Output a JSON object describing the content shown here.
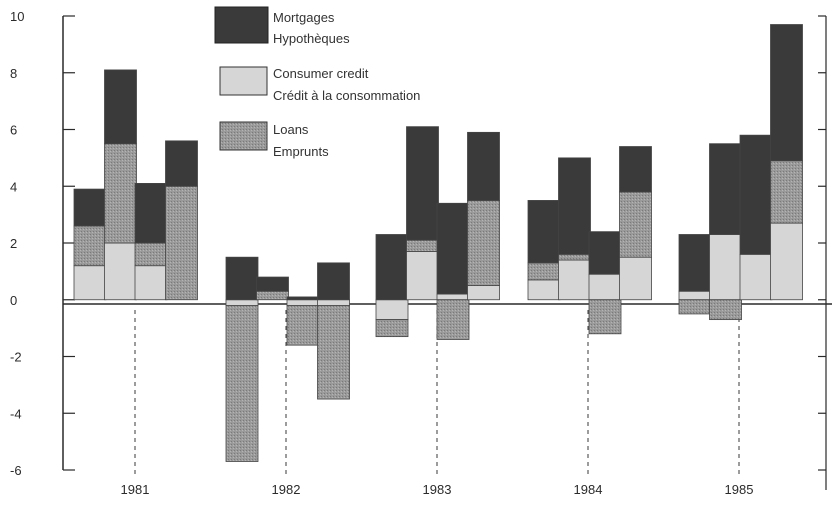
{
  "colors": {
    "mortgages": "#3a3a3a",
    "consumer_credit": "#d6d6d6",
    "loans": "#9a9a9a",
    "axis": "#2a2a2a",
    "background": "#ffffff"
  },
  "chart_data": {
    "type": "bar",
    "stacked": true,
    "title": "",
    "xlabel": "",
    "ylabel": "",
    "ylim": [
      -6,
      10
    ],
    "yticks": [
      10,
      8,
      6,
      4,
      2,
      0,
      -2,
      -4,
      -6
    ],
    "ytick_labels": [
      "10",
      "8",
      "6",
      "4",
      "2",
      "0",
      "-2",
      "-4",
      "-6"
    ],
    "grid": false,
    "legend_position": "top-center",
    "year_labels": [
      "1981",
      "1982",
      "1983",
      "1984",
      "1985"
    ],
    "categories": [
      "1981 Q1",
      "1981 Q2",
      "1981 Q3",
      "1981 Q4",
      "1982 Q1",
      "1982 Q2",
      "1982 Q3",
      "1982 Q4",
      "1983 Q1",
      "1983 Q2",
      "1983 Q3",
      "1983 Q4",
      "1984 Q1",
      "1984 Q2",
      "1984 Q3",
      "1984 Q4",
      "1985 Q1",
      "1985 Q2",
      "1985 Q3",
      "1985 Q4"
    ],
    "series": [
      {
        "key": "consumer_credit",
        "name_en": "Consumer credit",
        "name_fr": "Crédit à la consommation",
        "values": [
          1.2,
          2.0,
          1.2,
          0.0,
          -0.2,
          0.0,
          -0.2,
          -0.2,
          -0.7,
          1.7,
          0.2,
          0.5,
          0.7,
          1.4,
          0.9,
          1.5,
          0.3,
          2.3,
          1.6,
          2.7
        ]
      },
      {
        "key": "loans",
        "name_en": "Loans",
        "name_fr": "Emprunts",
        "values": [
          1.4,
          3.5,
          0.8,
          4.0,
          -5.5,
          0.3,
          -1.4,
          -3.3,
          -0.6,
          0.4,
          -1.4,
          3.0,
          0.6,
          0.2,
          -1.2,
          2.3,
          -0.5,
          -0.7,
          0.0,
          2.2
        ]
      },
      {
        "key": "mortgages",
        "name_en": "Mortgages",
        "name_fr": "Hypothèques",
        "values": [
          1.3,
          2.6,
          2.1,
          1.6,
          1.5,
          0.5,
          0.1,
          1.3,
          2.3,
          4.0,
          3.2,
          2.4,
          2.2,
          3.4,
          1.5,
          1.6,
          2.0,
          3.2,
          4.2,
          4.8
        ]
      }
    ]
  },
  "legend": {
    "mortgages": {
      "line1": "Mortgages",
      "line2": "Hypothèques"
    },
    "consumer_credit": {
      "line1": "Consumer credit",
      "line2": "Crédit à la consommation"
    },
    "loans": {
      "line1": "Loans",
      "line2": "Emprunts"
    }
  }
}
